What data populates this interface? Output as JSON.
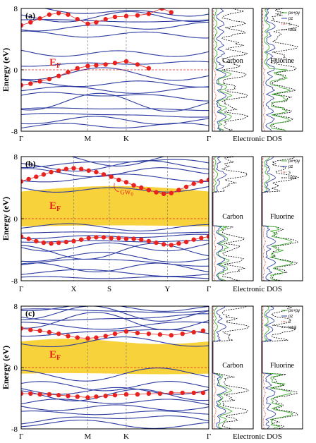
{
  "colors": {
    "band": "#2b3aa0",
    "gw": "#e8231f",
    "gap_fill": "#f7d23a",
    "px_py": "#33aa22",
    "pz": "#2b3aa0",
    "s": "#e8231f",
    "total": "#000000"
  },
  "ylabel": "Energy (eV)",
  "dos_xlabel": "Electronic DOS",
  "ef_label": "E",
  "ef_sub": "F",
  "chart_data": [
    {
      "type": "line",
      "panel": "(a)",
      "ylim": [
        -8,
        8
      ],
      "yticks": [
        "8",
        "0",
        "-8"
      ],
      "kpoints": [
        {
          "label": "Γ",
          "pos": 0
        },
        {
          "label": "M",
          "pos": 0.355
        },
        {
          "label": "K",
          "pos": 0.56
        },
        {
          "label": "Γ",
          "pos": 1
        }
      ],
      "fermi": 0,
      "gw_bands": [
        {
          "x": [
            0,
            0.05,
            0.1,
            0.15,
            0.2,
            0.25,
            0.3,
            0.355,
            0.4,
            0.45,
            0.5,
            0.56,
            0.62,
            0.68,
            0.75,
            0.8
          ],
          "y": [
            5.8,
            6.2,
            6.7,
            7.2,
            7.4,
            7.2,
            6.6,
            6.0,
            6.2,
            6.6,
            6.9,
            7.0,
            7.1,
            7.3,
            8.0,
            7.5
          ]
        },
        {
          "x": [
            0,
            0.05,
            0.1,
            0.15,
            0.2,
            0.25,
            0.3,
            0.355,
            0.4,
            0.45,
            0.5,
            0.56,
            0.62,
            0.68
          ],
          "y": [
            -2.0,
            -1.8,
            -1.5,
            -1.2,
            -0.8,
            -0.3,
            0.2,
            0.5,
            0.6,
            0.7,
            0.9,
            1.1,
            0.7,
            0.2
          ]
        }
      ],
      "dos": [
        {
          "label": "Carbon",
          "legend": []
        },
        {
          "label": "Fluorine",
          "legend": [
            "px+py",
            "pz",
            "s",
            "total"
          ]
        }
      ]
    },
    {
      "type": "line",
      "panel": "(b)",
      "ylim": [
        -8,
        8
      ],
      "yticks": [
        "8",
        "0",
        "-8"
      ],
      "kpoints": [
        {
          "label": "Γ",
          "pos": 0
        },
        {
          "label": "X",
          "pos": 0.28
        },
        {
          "label": "S",
          "pos": 0.47
        },
        {
          "label": "Y",
          "pos": 0.78
        },
        {
          "label": "Γ",
          "pos": 1
        }
      ],
      "fermi": 0,
      "gap": [
        -1.0,
        3.5
      ],
      "gw_label": "GW",
      "gw_sub": "0",
      "gw_bands": [
        {
          "x": [
            0,
            0.04,
            0.08,
            0.12,
            0.16,
            0.2,
            0.24,
            0.28,
            0.32,
            0.36,
            0.4,
            0.44,
            0.48,
            0.52,
            0.56,
            0.6,
            0.64,
            0.68,
            0.72,
            0.76,
            0.8,
            0.84,
            0.88,
            0.92,
            0.96,
            1
          ],
          "y": [
            4.8,
            5.1,
            5.4,
            5.7,
            6.0,
            6.2,
            6.4,
            6.5,
            6.4,
            6.2,
            6.0,
            5.7,
            5.4,
            5.0,
            4.7,
            4.3,
            4.0,
            3.7,
            3.4,
            3.2,
            3.3,
            3.7,
            4.1,
            4.5,
            4.8,
            5.0
          ]
        },
        {
          "x": [
            0,
            0.04,
            0.08,
            0.12,
            0.16,
            0.2,
            0.24,
            0.28,
            0.32,
            0.36,
            0.4,
            0.44,
            0.48,
            0.52,
            0.56,
            0.6,
            0.64,
            0.68,
            0.72,
            0.76,
            0.8,
            0.84,
            0.88,
            0.92,
            0.96,
            1
          ],
          "y": [
            -2.3,
            -2.6,
            -2.9,
            -3.1,
            -3.2,
            -3.1,
            -3.0,
            -2.9,
            -2.7,
            -2.5,
            -2.4,
            -2.4,
            -2.5,
            -2.5,
            -2.6,
            -2.6,
            -2.7,
            -2.9,
            -3.1,
            -3.3,
            -3.4,
            -3.2,
            -3.0,
            -2.7,
            -2.5,
            -2.3
          ]
        }
      ],
      "dos": [
        {
          "label": "Carbon",
          "legend": []
        },
        {
          "label": "Fluorine",
          "legend": [
            "px+py",
            "pz",
            "s",
            "total"
          ]
        }
      ]
    },
    {
      "type": "line",
      "panel": "(c)",
      "ylim": [
        -8,
        8
      ],
      "yticks": [
        "8",
        "0",
        "-8"
      ],
      "kpoints": [
        {
          "label": "Γ",
          "pos": 0
        },
        {
          "label": "M",
          "pos": 0.355
        },
        {
          "label": "K",
          "pos": 0.56
        },
        {
          "label": "Γ",
          "pos": 1
        }
      ],
      "fermi": 0,
      "gap": [
        -0.8,
        3.4
      ],
      "gw_bands": [
        {
          "x": [
            0,
            0.05,
            0.1,
            0.15,
            0.2,
            0.25,
            0.3,
            0.355,
            0.4,
            0.45,
            0.5,
            0.56,
            0.62,
            0.68,
            0.74,
            0.8,
            0.86,
            0.92,
            0.97
          ],
          "y": [
            5.1,
            4.9,
            4.8,
            4.6,
            4.4,
            4.1,
            3.9,
            3.8,
            3.9,
            4.1,
            4.4,
            4.7,
            4.5,
            4.4,
            4.3,
            4.2,
            4.4,
            4.6,
            4.8
          ]
        },
        {
          "x": [
            0,
            0.05,
            0.1,
            0.15,
            0.2,
            0.25,
            0.3,
            0.355,
            0.4,
            0.45,
            0.5,
            0.56,
            0.62,
            0.68,
            0.74,
            0.8,
            0.86,
            0.92,
            0.97
          ],
          "y": [
            -3.4,
            -3.4,
            -3.5,
            -3.5,
            -3.6,
            -3.7,
            -3.8,
            -3.9,
            -3.8,
            -3.7,
            -3.6,
            -3.5,
            -3.5,
            -3.4,
            -3.4,
            -3.3,
            -3.3,
            -3.3,
            -3.3
          ]
        }
      ],
      "dos": [
        {
          "label": "Carbon",
          "legend": []
        },
        {
          "label": "Fluorine",
          "legend": [
            "px+py",
            "pz",
            "s",
            "total"
          ]
        }
      ]
    }
  ]
}
